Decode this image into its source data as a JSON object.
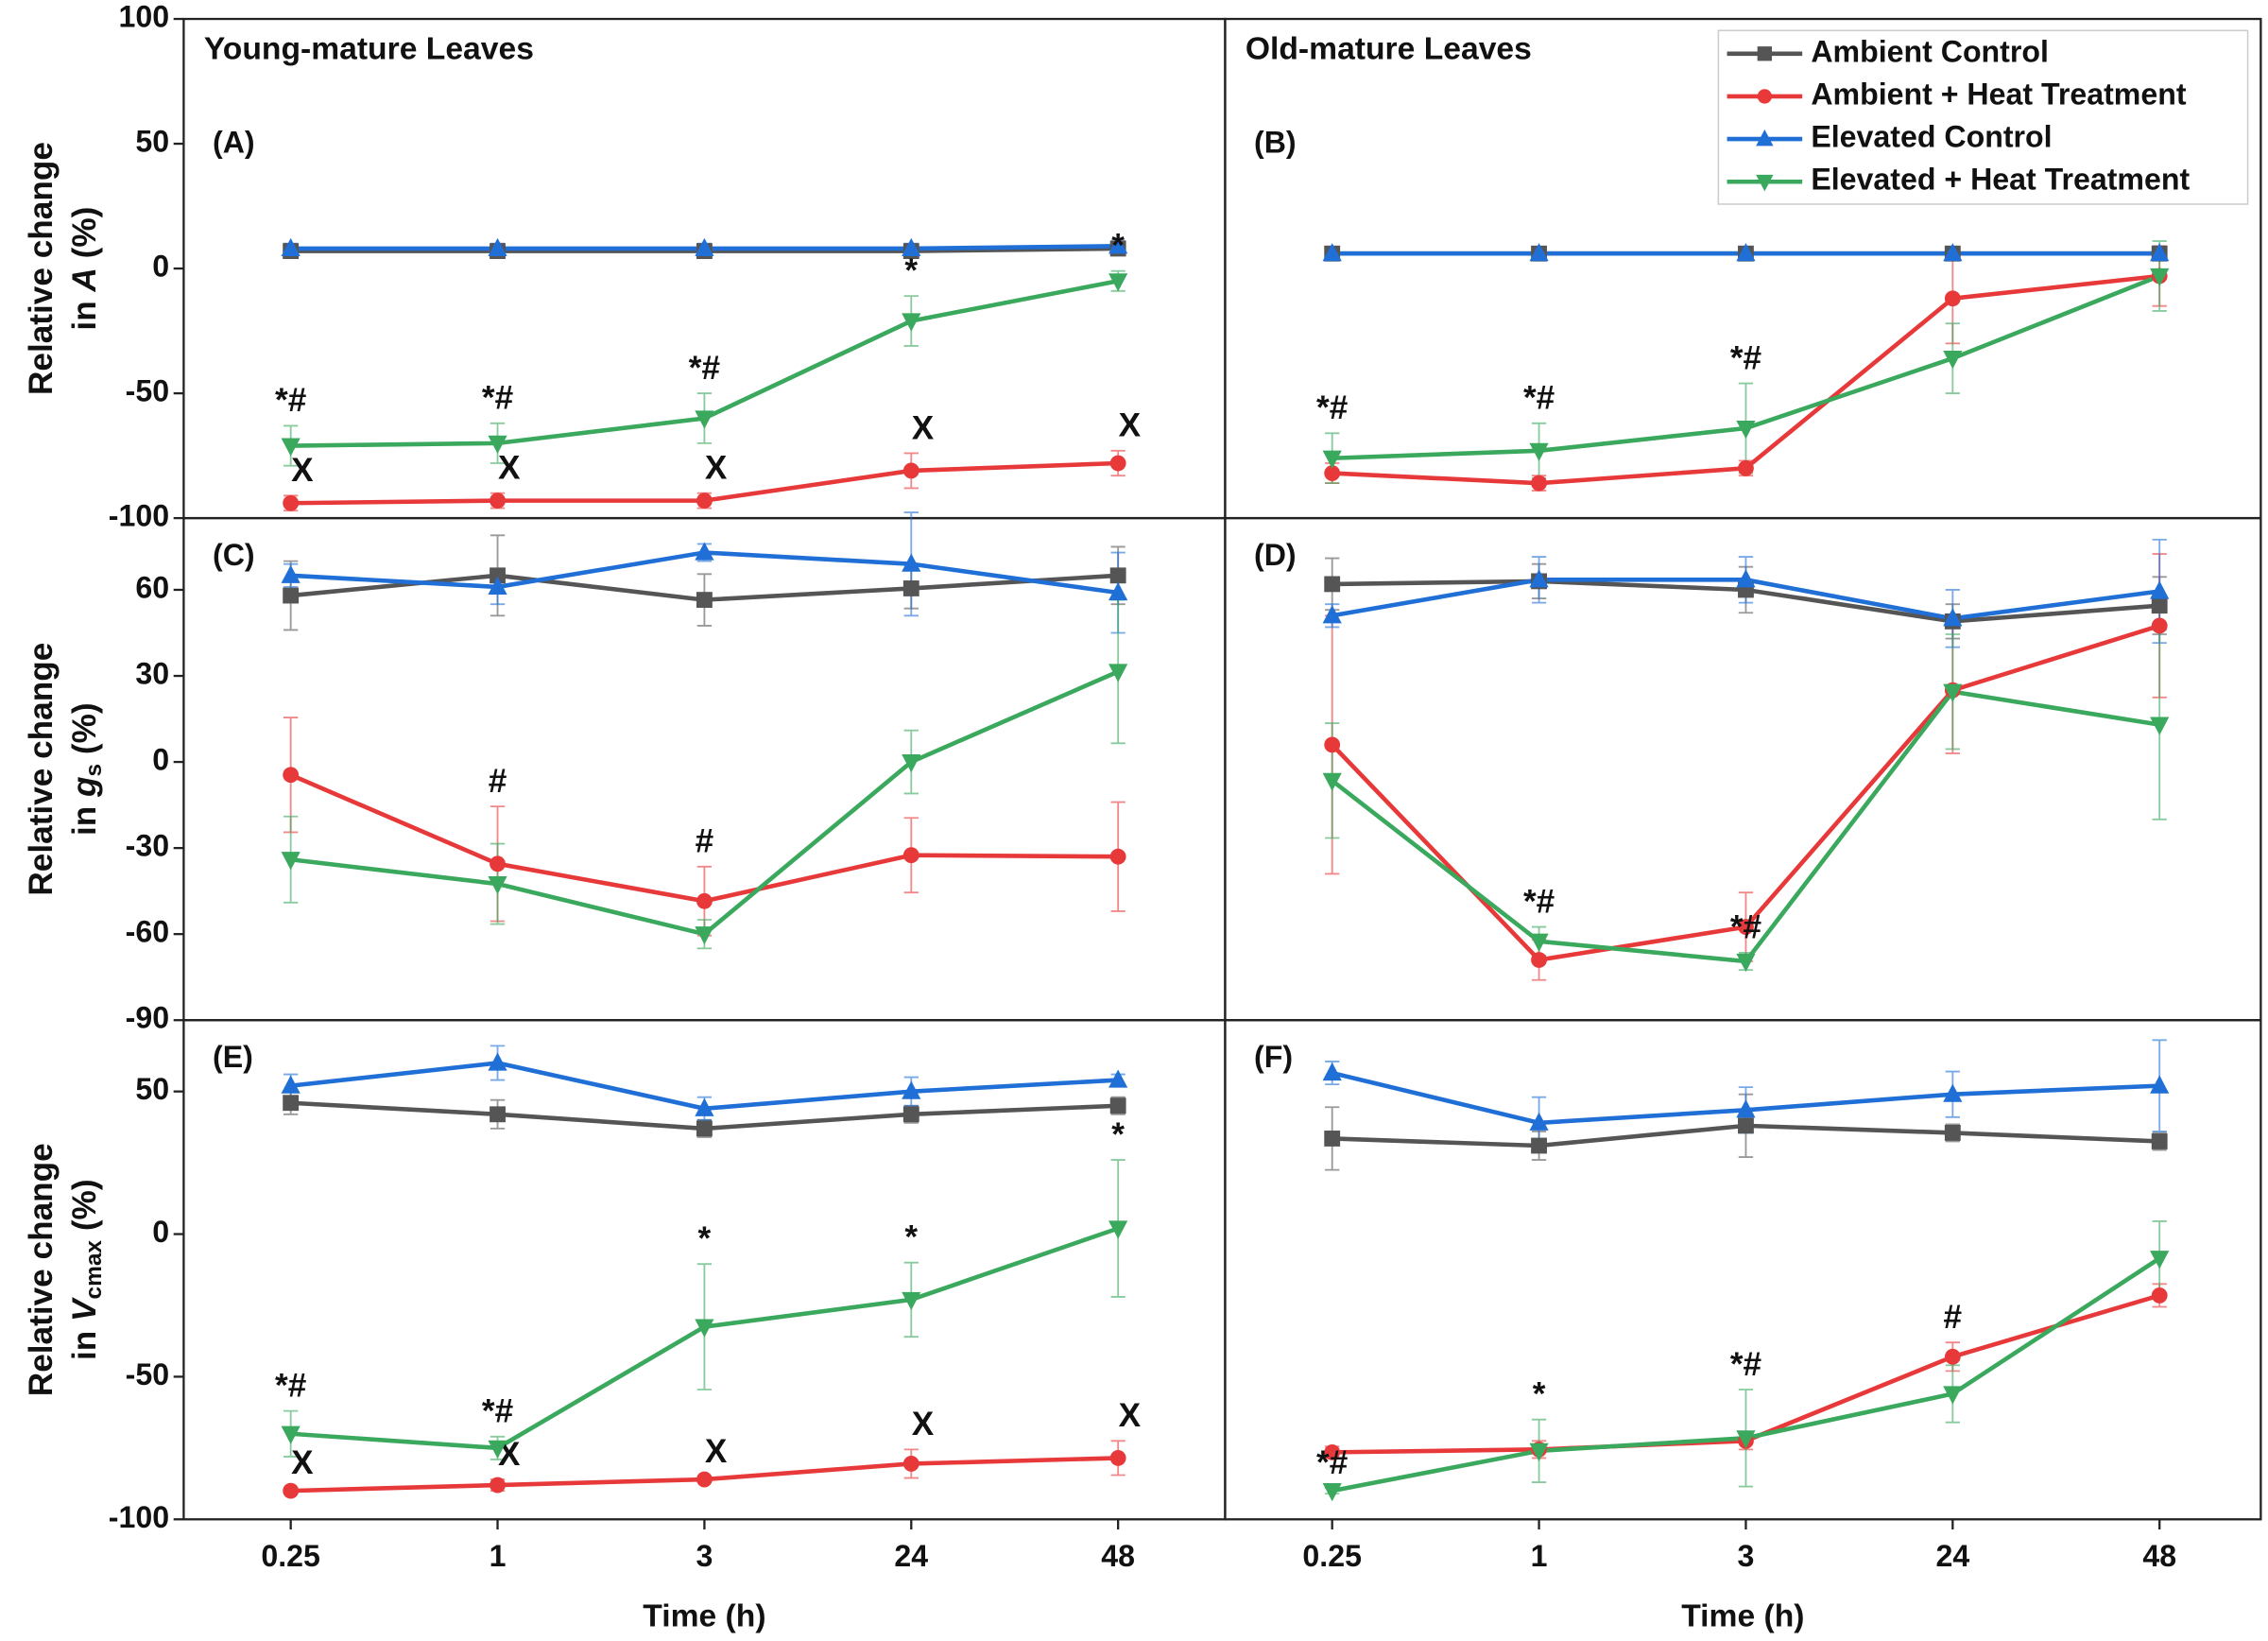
{
  "chart_data": [
    {
      "type": "line",
      "panel_label": "(A)",
      "title": "Young-mature Leaves",
      "ylabel": {
        "line1": "Relative change",
        "prefix": "in ",
        "symbol": "A",
        "suffix": " (%)"
      },
      "ylim": [
        -100,
        100
      ],
      "yticks": [
        -100,
        -50,
        0,
        50,
        100
      ],
      "series": [
        {
          "color": "#555555",
          "marker": "square",
          "values": [
            7,
            7,
            7,
            7,
            8
          ],
          "errors": [
            2,
            2,
            2,
            2,
            2
          ]
        },
        {
          "color": "#e8393a",
          "marker": "circle",
          "values": [
            -94,
            -93,
            -93,
            -81,
            -78
          ],
          "errors": [
            3,
            3,
            3,
            7,
            5
          ],
          "marker_labels": [
            "X",
            "X",
            "X",
            "X",
            "X"
          ]
        },
        {
          "color": "#1f6fd6",
          "marker": "triangle-up",
          "values": [
            8,
            8,
            8,
            8,
            9
          ],
          "errors": [
            2,
            2,
            2,
            2,
            2
          ]
        },
        {
          "color": "#3aa85d",
          "marker": "triangle-down",
          "values": [
            -71,
            -70,
            -60,
            -21,
            -5
          ],
          "errors": [
            8,
            8,
            10,
            10,
            4
          ],
          "marker_labels": [
            "*#",
            "*#",
            "*#",
            "*",
            "*"
          ]
        }
      ]
    },
    {
      "type": "line",
      "panel_label": "(B)",
      "title": "Old-mature Leaves",
      "legend": "upper right",
      "ylim": [
        -100,
        100
      ],
      "series": [
        {
          "name": "Ambient Control",
          "color": "#555555",
          "marker": "square",
          "values": [
            6,
            6,
            6,
            6,
            6
          ],
          "errors": [
            2,
            2,
            2,
            2,
            2
          ]
        },
        {
          "name": "Ambient + Heat Treatment",
          "color": "#e8393a",
          "marker": "circle",
          "values": [
            -82,
            -86,
            -80,
            -12,
            -3
          ],
          "errors": [
            4,
            3,
            3,
            18,
            12
          ]
        },
        {
          "name": "Elevated Control",
          "color": "#1f6fd6",
          "marker": "triangle-up",
          "values": [
            6,
            6,
            6,
            6,
            6
          ],
          "errors": [
            2,
            2,
            2,
            2,
            2
          ]
        },
        {
          "name": "Elevated + Heat Treatment",
          "color": "#3aa85d",
          "marker": "triangle-down",
          "values": [
            -76,
            -73,
            -64,
            -36,
            -3
          ],
          "errors": [
            10,
            11,
            18,
            14,
            14
          ],
          "marker_labels": [
            "*#",
            "*#",
            "*#",
            null,
            null
          ]
        }
      ]
    },
    {
      "type": "line",
      "panel_label": "(C)",
      "ylabel": {
        "line1": "Relative change",
        "prefix": "in ",
        "symbol": "g",
        "subscript": "s",
        "suffix": " (%)"
      },
      "ylim": [
        -90,
        85
      ],
      "yticks": [
        -90,
        -60,
        -30,
        0,
        30,
        60
      ],
      "series": [
        {
          "color": "#555555",
          "marker": "square",
          "values": [
            58,
            65,
            56.5,
            60.5,
            65
          ],
          "errors": [
            12,
            14,
            9,
            7,
            10
          ]
        },
        {
          "color": "#e8393a",
          "marker": "circle",
          "values": [
            -4.5,
            -35.5,
            -48.5,
            -32.5,
            -33
          ],
          "errors": [
            20,
            20,
            12,
            13,
            19
          ],
          "marker_labels": [
            null,
            "#",
            "#",
            null,
            null
          ]
        },
        {
          "color": "#1f6fd6",
          "marker": "triangle-up",
          "values": [
            65,
            61,
            73,
            69,
            59
          ],
          "errors": [
            4,
            6,
            3,
            18,
            14
          ]
        },
        {
          "color": "#3aa85d",
          "marker": "triangle-down",
          "values": [
            -34,
            -42.5,
            -60,
            0,
            31.5
          ],
          "errors": [
            15,
            14,
            5,
            11,
            25
          ]
        }
      ]
    },
    {
      "type": "line",
      "panel_label": "(D)",
      "ylim": [
        -90,
        85
      ],
      "series": [
        {
          "color": "#555555",
          "marker": "square",
          "values": [
            62,
            63,
            60,
            49,
            54.5
          ],
          "errors": [
            9,
            6,
            8,
            6,
            10
          ]
        },
        {
          "color": "#e8393a",
          "marker": "circle",
          "values": [
            6,
            -69,
            -57.5,
            25,
            47.5
          ],
          "errors": [
            45,
            7,
            12,
            22,
            25
          ]
        },
        {
          "color": "#1f6fd6",
          "marker": "triangle-up",
          "values": [
            51,
            63.5,
            63.5,
            50,
            59.5
          ],
          "errors": [
            4,
            8,
            8,
            10,
            18
          ]
        },
        {
          "color": "#3aa85d",
          "marker": "triangle-down",
          "values": [
            -6.5,
            -62.5,
            -69.5,
            24.5,
            13
          ],
          "errors": [
            20,
            5,
            3,
            20,
            33
          ],
          "marker_labels": [
            null,
            "*#",
            "*#",
            null,
            null
          ]
        }
      ]
    },
    {
      "type": "line",
      "panel_label": "(E)",
      "ylabel": {
        "line1": "Relative change",
        "prefix": "in ",
        "symbol": "V",
        "subscript": "cmax",
        "suffix": " (%)"
      },
      "ylim": [
        -100,
        75
      ],
      "yticks": [
        -100,
        -50,
        0,
        50
      ],
      "categories": [
        "0.25",
        "1",
        "3",
        "24",
        "48"
      ],
      "xlabel": "Time (h)",
      "series": [
        {
          "color": "#555555",
          "marker": "square",
          "values": [
            46,
            42,
            37,
            42,
            45
          ],
          "errors": [
            4,
            5,
            3,
            3,
            3
          ]
        },
        {
          "color": "#e8393a",
          "marker": "circle",
          "values": [
            -90,
            -88,
            -86,
            -80.5,
            -78.5
          ],
          "errors": [
            1,
            2,
            1,
            5,
            6
          ],
          "marker_labels": [
            "X",
            "X",
            "X",
            "X",
            "X"
          ]
        },
        {
          "color": "#1f6fd6",
          "marker": "triangle-up",
          "values": [
            52,
            60,
            44,
            50,
            54
          ],
          "errors": [
            4,
            6,
            4,
            5,
            2
          ]
        },
        {
          "color": "#3aa85d",
          "marker": "triangle-down",
          "values": [
            -70,
            -75,
            -32.5,
            -23,
            2
          ],
          "errors": [
            8,
            4,
            22,
            13,
            24
          ],
          "marker_labels": [
            "*#",
            "*#",
            "*",
            "*",
            "*"
          ]
        }
      ]
    },
    {
      "type": "line",
      "panel_label": "(F)",
      "ylim": [
        -100,
        75
      ],
      "categories": [
        "0.25",
        "1",
        "3",
        "24",
        "48"
      ],
      "xlabel": "Time (h)",
      "series": [
        {
          "color": "#555555",
          "marker": "square",
          "values": [
            33.5,
            31,
            38,
            35.5,
            32.5
          ],
          "errors": [
            11,
            5,
            11,
            3,
            3
          ]
        },
        {
          "color": "#e8393a",
          "marker": "circle",
          "values": [
            -76.5,
            -75.5,
            -72.5,
            -43,
            -21.5
          ],
          "errors": [
            2,
            3,
            3,
            5,
            4
          ],
          "marker_labels": [
            null,
            null,
            null,
            "#",
            null
          ]
        },
        {
          "color": "#1f6fd6",
          "marker": "triangle-up",
          "values": [
            56.5,
            39,
            43.5,
            49,
            52
          ],
          "errors": [
            4,
            9,
            8,
            8,
            16
          ]
        },
        {
          "color": "#3aa85d",
          "marker": "triangle-down",
          "values": [
            -90,
            -76,
            -71.5,
            -56,
            -8.5
          ],
          "errors": [
            1,
            11,
            17,
            10,
            13
          ],
          "marker_labels": [
            "*#",
            "*",
            "*#",
            null,
            null
          ]
        }
      ]
    }
  ]
}
